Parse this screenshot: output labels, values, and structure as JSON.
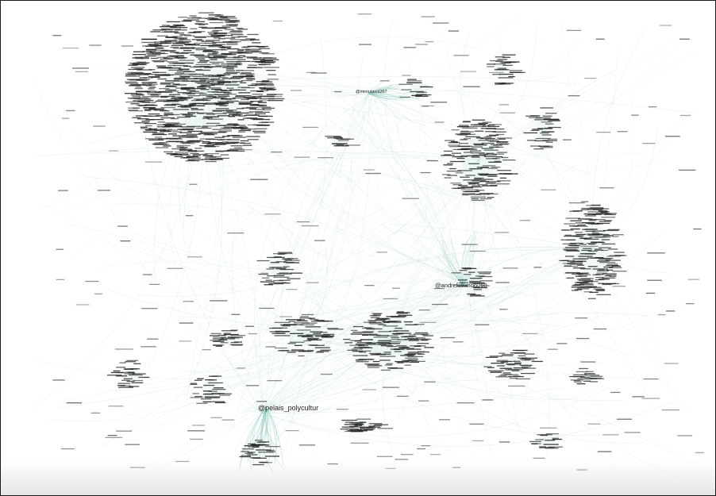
{
  "graph": {
    "edge_color": "#8fc9bf",
    "node_label_color": "#222222",
    "hubs": [
      {
        "id": "hub-1",
        "label": "@mimulasol267"
      },
      {
        "id": "hub-2",
        "label": "@andrefeliano6060"
      },
      {
        "id": "hub-3",
        "label": "@pelais_polycultur"
      }
    ]
  }
}
